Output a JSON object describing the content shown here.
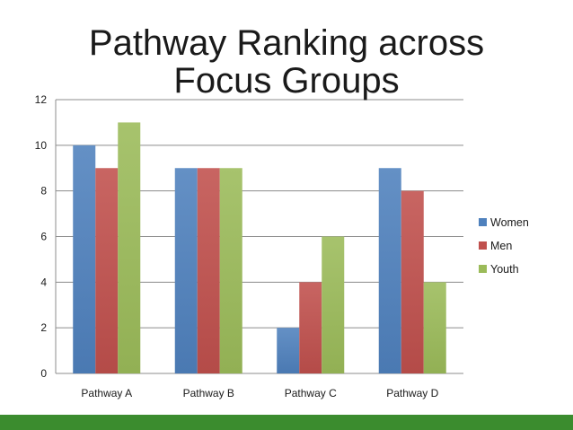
{
  "slide": {
    "title": "Pathway Ranking across Focus Groups",
    "bar_color": "#3b8c2e"
  },
  "chart_data": {
    "type": "bar",
    "title": "Pathway Ranking across Focus Groups",
    "categories": [
      "Pathway A",
      "Pathway B",
      "Pathway C",
      "Pathway D"
    ],
    "series": [
      {
        "name": "Women",
        "values": [
          10,
          9,
          2,
          9
        ],
        "color": "#4f81bd"
      },
      {
        "name": "Men",
        "values": [
          9,
          9,
          4,
          8
        ],
        "color": "#c0504d"
      },
      {
        "name": "Youth",
        "values": [
          11,
          9,
          6,
          4
        ],
        "color": "#9bbb59"
      }
    ],
    "ylim": [
      0,
      12
    ],
    "yticks": [
      0,
      2,
      4,
      6,
      8,
      10,
      12
    ],
    "xlabel": "",
    "ylabel": "",
    "grid": true,
    "legend_position": "right"
  }
}
